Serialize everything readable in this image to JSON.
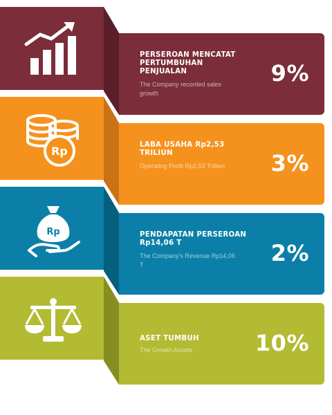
{
  "cards": [
    {
      "icon": "growth-chart-icon",
      "title": "PERSEROAN MENCATAT PERTUMBUHAN PENJUALAN",
      "subtitle": "The Company recorded sales growth",
      "percent": "9%",
      "colors": {
        "main": "#7b2d3a",
        "fold": "#5a1f29"
      }
    },
    {
      "icon": "coins-rp-icon",
      "title": "LABA USAHA Rp2,53 TRILIUN",
      "subtitle": "Operating Profit Rp2,53 Trillion",
      "percent": "3%",
      "colors": {
        "main": "#f5921e",
        "fold": "#c97216"
      }
    },
    {
      "icon": "money-bag-hand-icon",
      "title": "PENDAPATAN PERSEROAN Rp14,06 T",
      "subtitle": "The Company's Revenue Rp14,06 T",
      "percent": "2%",
      "colors": {
        "main": "#0b7fa8",
        "fold": "#075f7e"
      }
    },
    {
      "icon": "balance-scale-icon",
      "title": "ASET TUMBUH",
      "subtitle": "The Growth Assets",
      "percent": "10%",
      "colors": {
        "main": "#b2bb32",
        "fold": "#868e22"
      }
    }
  ],
  "icon_text": {
    "rp": "Rp"
  }
}
